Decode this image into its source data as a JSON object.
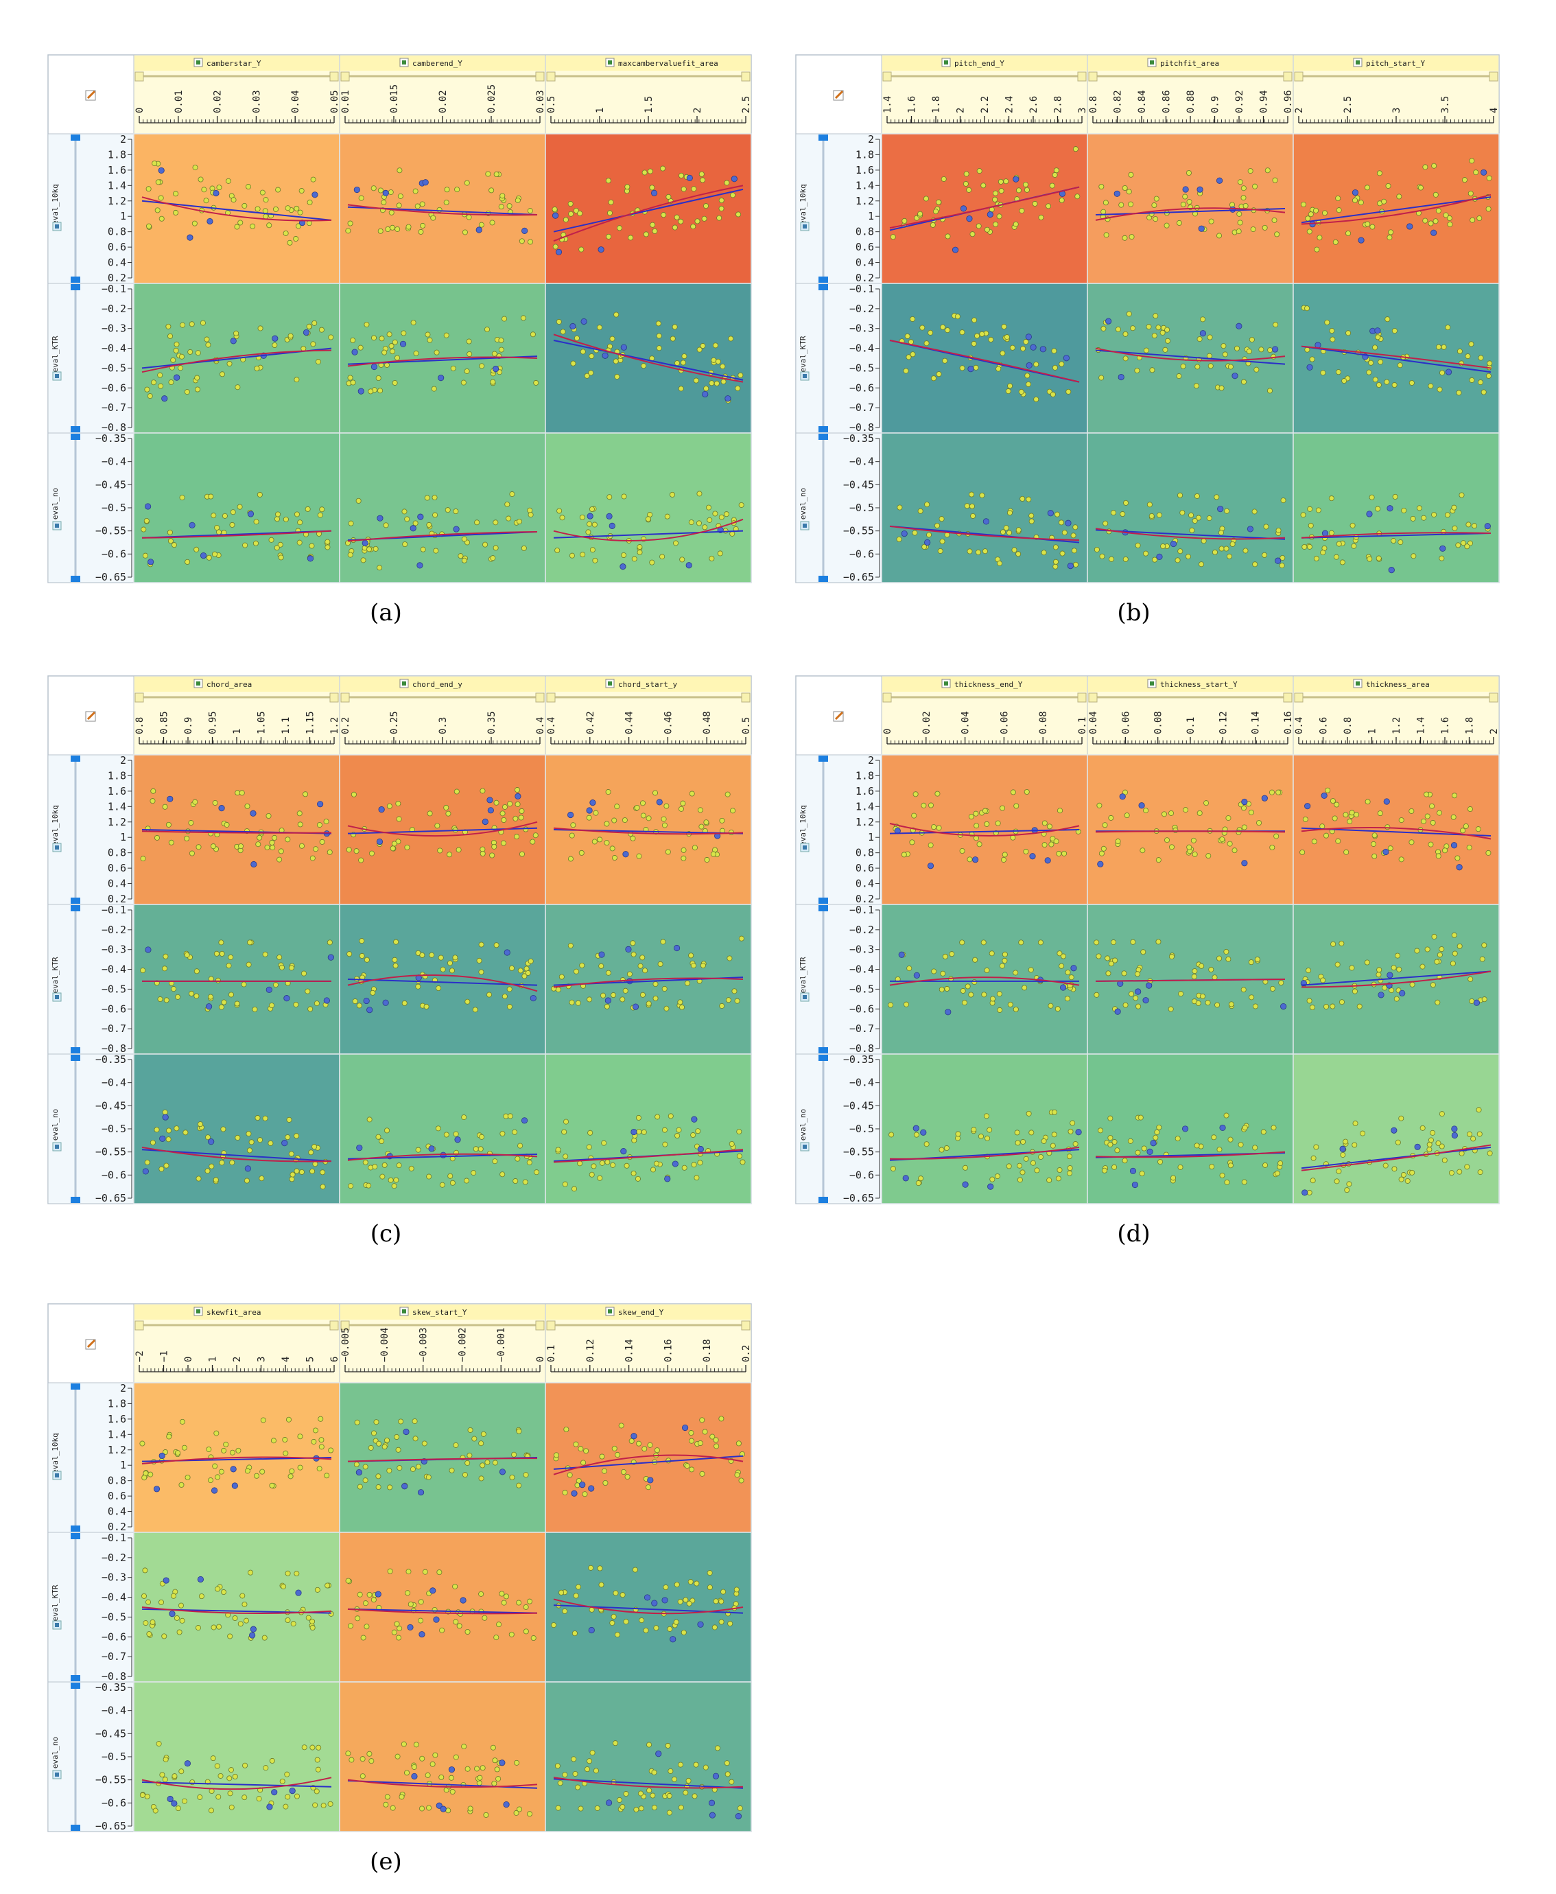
{
  "colors": {
    "panel_border": "#b9c3cd",
    "header_bg": "#fffbdc",
    "header_title_bg": "#fff6b5",
    "side_bg": "#f2f8fc",
    "slider_blue": "#1c7fe0",
    "point_yellow": "#d9e44a",
    "point_blue": "#4c6ad0",
    "fit_red": "#c0204a",
    "fit_blue": "#2a2fc8",
    "fit_dark": "#5a2a2a"
  },
  "row_labels": [
    "eval_10kq",
    "eval_KTR",
    "eval_no"
  ],
  "y_axes": [
    {
      "ticks": [
        "2",
        "1.8",
        "1.6",
        "1.4",
        "1.2",
        "1",
        "0.8",
        "0.6",
        "0.4",
        "0.2"
      ],
      "values": [
        2,
        1.8,
        1.6,
        1.4,
        1.2,
        1,
        0.8,
        0.6,
        0.4,
        0.2
      ],
      "range": [
        0.2,
        2
      ]
    },
    {
      "ticks": [
        "−0.1",
        "−0.2",
        "−0.3",
        "−0.4",
        "−0.5",
        "−0.6",
        "−0.7",
        "−0.8"
      ],
      "values": [
        -0.1,
        -0.2,
        -0.3,
        -0.4,
        -0.5,
        -0.6,
        -0.7,
        -0.8
      ],
      "range": [
        -0.8,
        -0.1
      ]
    },
    {
      "ticks": [
        "−0.35",
        "−0.4",
        "−0.45",
        "−0.5",
        "−0.55",
        "−0.6",
        "−0.65"
      ],
      "values": [
        -0.35,
        -0.4,
        -0.45,
        -0.5,
        -0.55,
        -0.6,
        -0.65
      ],
      "range": [
        -0.65,
        -0.35
      ]
    }
  ],
  "chart_data": [
    {
      "type": "scatter",
      "caption": "(a)",
      "columns": [
        {
          "name": "camberstar_Y",
          "ticks": [
            "0",
            "0.01",
            "0.02",
            "0.03",
            "0.04",
            "0.05"
          ],
          "range": [
            0,
            0.05
          ]
        },
        {
          "name": "camberend_Y",
          "ticks": [
            "0.01",
            "0.015",
            "0.02",
            "0.025",
            "0.03"
          ],
          "range": [
            0.01,
            0.03
          ]
        },
        {
          "name": "maxcambervaluefit_area",
          "ticks": [
            "0.5",
            "1",
            "1.5",
            "2",
            "2.5"
          ],
          "range": [
            0.5,
            2.5
          ]
        }
      ],
      "cells": [
        [
          {
            "bg": "#fbb463",
            "trend": [
              1.2,
              0.95
            ],
            "curve": [
              1.25,
              1.0,
              0.95
            ],
            "seed": 11
          },
          {
            "bg": "#f7a85e",
            "trend": [
              1.12,
              1.02
            ],
            "curve": [
              1.15,
              1.04,
              1.02
            ],
            "seed": 12
          },
          {
            "bg": "#e8653e",
            "trend": [
              0.8,
              1.35
            ],
            "curve": [
              0.68,
              1.1,
              1.4
            ],
            "seed": 13
          }
        ],
        [
          {
            "bg": "#79c48d",
            "trend": [
              -0.5,
              -0.4
            ],
            "curve": [
              -0.52,
              -0.44,
              -0.41
            ],
            "seed": 21
          },
          {
            "bg": "#77c38d",
            "trend": [
              -0.48,
              -0.44
            ],
            "curve": [
              -0.49,
              -0.45,
              -0.45
            ],
            "seed": 22
          },
          {
            "bg": "#4f9a9a",
            "trend": [
              -0.36,
              -0.56
            ],
            "curve": [
              -0.33,
              -0.47,
              -0.57
            ],
            "seed": 23
          }
        ],
        [
          {
            "bg": "#74c48f",
            "trend": [
              -0.565,
              -0.55
            ],
            "curve": [
              -0.565,
              -0.56,
              -0.55
            ],
            "seed": 31
          },
          {
            "bg": "#79c590",
            "trend": [
              -0.57,
              -0.552
            ],
            "curve": [
              -0.572,
              -0.558,
              -0.552
            ],
            "seed": 32
          },
          {
            "bg": "#86cf8e",
            "trend": [
              -0.565,
              -0.55
            ],
            "curve": [
              -0.55,
              -0.57,
              -0.525
            ],
            "seed": 33
          }
        ]
      ]
    },
    {
      "type": "scatter",
      "caption": "(b)",
      "columns": [
        {
          "name": "pitch_end_Y",
          "ticks": [
            "1.4",
            "1.6",
            "1.8",
            "2",
            "2.2",
            "2.4",
            "2.6",
            "2.8",
            "3"
          ],
          "range": [
            1.4,
            3
          ]
        },
        {
          "name": "pitchfit_area",
          "ticks": [
            "0.8",
            "0.82",
            "0.84",
            "0.86",
            "0.88",
            "0.9",
            "0.92",
            "0.94",
            "0.96"
          ],
          "range": [
            0.8,
            0.96
          ]
        },
        {
          "name": "pitch_start_Y",
          "ticks": [
            "2",
            "2.5",
            "3",
            "3.5",
            "4"
          ],
          "range": [
            2,
            4
          ]
        }
      ],
      "cells": [
        [
          {
            "bg": "#eb6e44",
            "trend": [
              0.82,
              1.38
            ],
            "curve": [
              0.85,
              1.1,
              1.38
            ],
            "seed": 41
          },
          {
            "bg": "#f59d5e",
            "trend": [
              1.02,
              1.1
            ],
            "curve": [
              0.95,
              1.1,
              1.05
            ],
            "seed": 42
          },
          {
            "bg": "#ef8148",
            "trend": [
              0.92,
              1.25
            ],
            "curve": [
              0.9,
              1.02,
              1.28
            ],
            "seed": 43
          }
        ],
        [
          {
            "bg": "#4f9a9d",
            "trend": [
              -0.36,
              -0.57
            ],
            "curve": [
              -0.36,
              -0.46,
              -0.57
            ],
            "seed": 51
          },
          {
            "bg": "#69b496",
            "trend": [
              -0.41,
              -0.48
            ],
            "curve": [
              -0.4,
              -0.46,
              -0.44
            ],
            "seed": 52
          },
          {
            "bg": "#58a69c",
            "trend": [
              -0.39,
              -0.52
            ],
            "curve": [
              -0.39,
              -0.44,
              -0.5
            ],
            "seed": 53
          }
        ],
        [
          {
            "bg": "#5aa69b",
            "trend": [
              -0.54,
              -0.575
            ],
            "curve": [
              -0.54,
              -0.56,
              -0.57
            ],
            "seed": 61
          },
          {
            "bg": "#62b198",
            "trend": [
              -0.548,
              -0.568
            ],
            "curve": [
              -0.545,
              -0.565,
              -0.565
            ],
            "seed": 62
          },
          {
            "bg": "#76c58f",
            "trend": [
              -0.565,
              -0.555
            ],
            "curve": [
              -0.565,
              -0.555,
              -0.555
            ],
            "seed": 63
          }
        ]
      ]
    },
    {
      "type": "scatter",
      "caption": "(c)",
      "columns": [
        {
          "name": "chord_area",
          "ticks": [
            "0.8",
            "0.85",
            "0.9",
            "0.95",
            "1",
            "1.05",
            "1.1",
            "1.15",
            "1.2"
          ],
          "range": [
            0.8,
            1.2
          ]
        },
        {
          "name": "chord_end_y",
          "ticks": [
            "0.2",
            "0.25",
            "0.3",
            "0.35",
            "0.4"
          ],
          "range": [
            0.2,
            0.4
          ]
        },
        {
          "name": "chord_start_y",
          "ticks": [
            "0.4",
            "0.42",
            "0.44",
            "0.46",
            "0.48",
            "0.5"
          ],
          "range": [
            0.4,
            0.5
          ]
        }
      ],
      "cells": [
        [
          {
            "bg": "#f29a56",
            "trend": [
              1.1,
              1.05
            ],
            "curve": [
              1.08,
              1.06,
              1.06
            ],
            "seed": 71
          },
          {
            "bg": "#ef8a4d",
            "trend": [
              1.05,
              1.12
            ],
            "curve": [
              1.15,
              1.02,
              1.2
            ],
            "seed": 72
          },
          {
            "bg": "#f5a45a",
            "trend": [
              1.1,
              1.05
            ],
            "curve": [
              1.12,
              1.05,
              1.06
            ],
            "seed": 73
          }
        ],
        [
          {
            "bg": "#64b096",
            "trend": [
              -0.46,
              -0.46
            ],
            "curve": [
              -0.46,
              -0.46,
              -0.46
            ],
            "seed": 81
          },
          {
            "bg": "#5aa69b",
            "trend": [
              -0.45,
              -0.48
            ],
            "curve": [
              -0.48,
              -0.43,
              -0.51
            ],
            "seed": 82
          },
          {
            "bg": "#66b197",
            "trend": [
              -0.48,
              -0.44
            ],
            "curve": [
              -0.49,
              -0.45,
              -0.45
            ],
            "seed": 83
          }
        ],
        [
          {
            "bg": "#58a49c",
            "trend": [
              -0.545,
              -0.57
            ],
            "curve": [
              -0.54,
              -0.565,
              -0.57
            ],
            "seed": 91
          },
          {
            "bg": "#78c590",
            "trend": [
              -0.565,
              -0.555
            ],
            "curve": [
              -0.568,
              -0.555,
              -0.56
            ],
            "seed": 92
          },
          {
            "bg": "#80cc8e",
            "trend": [
              -0.57,
              -0.548
            ],
            "curve": [
              -0.572,
              -0.56,
              -0.545
            ],
            "seed": 93
          }
        ]
      ]
    },
    {
      "type": "scatter",
      "caption": "(d)",
      "columns": [
        {
          "name": "thickness_end_Y",
          "ticks": [
            "0",
            "0.02",
            "0.04",
            "0.06",
            "0.08",
            "0.1"
          ],
          "range": [
            0,
            0.1
          ]
        },
        {
          "name": "thickness_start_Y",
          "ticks": [
            "0.04",
            "0.06",
            "0.08",
            "0.1",
            "0.12",
            "0.14",
            "0.16"
          ],
          "range": [
            0.04,
            0.16
          ]
        },
        {
          "name": "thickness_area",
          "ticks": [
            "0.4",
            "0.6",
            "0.8",
            "1",
            "1.2",
            "1.4",
            "1.6",
            "1.8",
            "2"
          ],
          "range": [
            0.4,
            2
          ]
        }
      ],
      "cells": [
        [
          {
            "bg": "#f39a58",
            "trend": [
              1.05,
              1.1
            ],
            "curve": [
              1.18,
              1.02,
              1.15
            ],
            "seed": 101
          },
          {
            "bg": "#f6a35c",
            "trend": [
              1.08,
              1.08
            ],
            "curve": [
              1.07,
              1.08,
              1.07
            ],
            "seed": 102
          },
          {
            "bg": "#f39556",
            "trend": [
              1.12,
              1.02
            ],
            "curve": [
              1.08,
              1.12,
              0.98
            ],
            "seed": 103
          }
        ],
        [
          {
            "bg": "#6ab696",
            "trend": [
              -0.46,
              -0.46
            ],
            "curve": [
              -0.48,
              -0.44,
              -0.48
            ],
            "seed": 111
          },
          {
            "bg": "#6db896",
            "trend": [
              -0.46,
              -0.45
            ],
            "curve": [
              -0.46,
              -0.455,
              -0.45
            ],
            "seed": 112
          },
          {
            "bg": "#70bb93",
            "trend": [
              -0.48,
              -0.41
            ],
            "curve": [
              -0.49,
              -0.47,
              -0.41
            ],
            "seed": 113
          }
        ],
        [
          {
            "bg": "#7fca8e",
            "trend": [
              -0.568,
              -0.545
            ],
            "curve": [
              -0.565,
              -0.56,
              -0.54
            ],
            "seed": 121
          },
          {
            "bg": "#74c48f",
            "trend": [
              -0.562,
              -0.552
            ],
            "curve": [
              -0.56,
              -0.56,
              -0.55
            ],
            "seed": 122
          },
          {
            "bg": "#98d693",
            "trend": [
              -0.585,
              -0.54
            ],
            "curve": [
              -0.59,
              -0.565,
              -0.535
            ],
            "seed": 123
          }
        ]
      ]
    },
    {
      "type": "scatter",
      "caption": "(e)",
      "columns": [
        {
          "name": "skewfit_area",
          "ticks": [
            "−2",
            "−1",
            "0",
            "1",
            "2",
            "3",
            "4",
            "5",
            "6"
          ],
          "range": [
            -2,
            6
          ]
        },
        {
          "name": "skew_start_Y",
          "ticks": [
            "−0.005",
            "−0.004",
            "−0.003",
            "−0.002",
            "−0.001",
            "0"
          ],
          "range": [
            -0.005,
            0
          ]
        },
        {
          "name": "skew_end_Y",
          "ticks": [
            "0.1",
            "0.12",
            "0.14",
            "0.16",
            "0.18",
            "0.2"
          ],
          "range": [
            0.1,
            0.2
          ]
        }
      ],
      "cells": [
        [
          {
            "bg": "#fbbb67",
            "trend": [
              1.05,
              1.1
            ],
            "curve": [
              1.02,
              1.1,
              1.08
            ],
            "seed": 131
          },
          {
            "bg": "#78c390",
            "trend": [
              1.05,
              1.1
            ],
            "curve": [
              1.05,
              1.08,
              1.09
            ],
            "seed": 132
          },
          {
            "bg": "#f29356",
            "trend": [
              0.95,
              1.12
            ],
            "curve": [
              0.88,
              1.12,
              1.05
            ],
            "seed": 133
          }
        ],
        [
          {
            "bg": "#a2da94",
            "trend": [
              -0.46,
              -0.48
            ],
            "curve": [
              -0.45,
              -0.48,
              -0.47
            ],
            "seed": 141
          },
          {
            "bg": "#f5a35a",
            "trend": [
              -0.46,
              -0.48
            ],
            "curve": [
              -0.46,
              -0.48,
              -0.48
            ],
            "seed": 142
          },
          {
            "bg": "#5ba79a",
            "trend": [
              -0.44,
              -0.48
            ],
            "curve": [
              -0.41,
              -0.48,
              -0.45
            ],
            "seed": 143
          }
        ],
        [
          {
            "bg": "#a3db94",
            "trend": [
              -0.555,
              -0.565
            ],
            "curve": [
              -0.55,
              -0.57,
              -0.545
            ],
            "seed": 151
          },
          {
            "bg": "#f5a95c",
            "trend": [
              -0.552,
              -0.568
            ],
            "curve": [
              -0.55,
              -0.565,
              -0.56
            ],
            "seed": 152
          },
          {
            "bg": "#66b197",
            "trend": [
              -0.548,
              -0.568
            ],
            "curve": [
              -0.545,
              -0.565,
              -0.565
            ],
            "seed": 153
          }
        ]
      ]
    }
  ]
}
